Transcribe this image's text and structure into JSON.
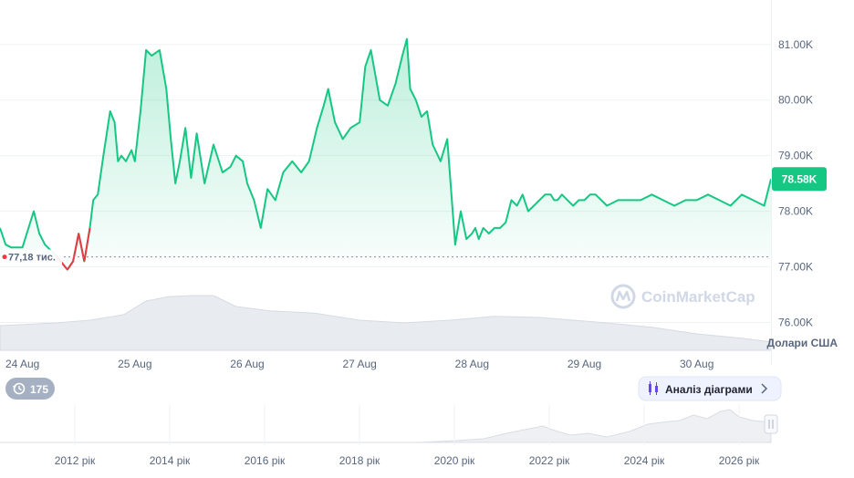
{
  "chart_data": {
    "type": "area",
    "currency_label": "Долари США",
    "price_badge": "78.58K",
    "baseline_label": "77,18 тис.",
    "baseline_value": 77.18,
    "y_ticks": [
      "81.00K",
      "80.00K",
      "79.00K",
      "78.00K",
      "77.00K",
      "76.00K"
    ],
    "y_tick_values": [
      81.0,
      80.0,
      79.0,
      78.0,
      77.0,
      76.0
    ],
    "ylim": [
      75.5,
      81.8
    ],
    "x_ticks": [
      "24 Aug",
      "25 Aug",
      "26 Aug",
      "27 Aug",
      "28 Aug",
      "29 Aug",
      "30 Aug"
    ],
    "xlim": [
      23.8,
      30.66
    ],
    "series": [
      {
        "x": [
          23.8,
          23.85,
          23.9,
          24.0,
          24.1,
          24.15,
          24.2,
          24.3,
          24.4,
          24.45,
          24.5,
          24.55,
          24.6,
          24.63,
          24.67,
          24.72,
          24.78,
          24.82,
          24.85,
          24.88,
          24.92,
          24.97,
          25.0,
          25.05,
          25.1,
          25.15,
          25.22,
          25.28,
          25.32,
          25.36,
          25.4,
          25.45,
          25.5,
          25.55,
          25.62,
          25.7,
          25.78,
          25.85,
          25.9,
          25.96,
          26.0,
          26.06,
          26.12,
          26.18,
          26.25,
          26.32,
          26.4,
          26.48,
          26.55,
          26.62,
          26.68,
          26.72,
          26.78,
          26.85,
          26.92,
          27.0,
          27.05,
          27.1,
          27.18,
          27.25,
          27.32,
          27.38,
          27.42,
          27.45,
          27.5,
          27.55,
          27.6,
          27.65,
          27.72,
          27.78,
          27.85,
          27.9,
          27.95,
          28.0,
          28.03,
          28.06,
          28.1,
          28.15,
          28.2,
          28.25,
          28.3,
          28.35,
          28.4,
          28.45,
          28.5,
          28.55,
          28.6,
          28.65,
          28.7,
          28.73,
          28.76,
          28.8,
          28.85,
          28.9,
          28.95,
          29.0,
          29.05,
          29.1,
          29.15,
          29.2,
          29.3,
          29.4,
          29.5,
          29.6,
          29.7,
          29.8,
          29.9,
          30.0,
          30.1,
          30.2,
          30.3,
          30.4,
          30.5,
          30.6,
          30.66
        ],
        "y": [
          77.7,
          77.4,
          77.35,
          77.35,
          78.0,
          77.6,
          77.4,
          77.2,
          76.95,
          77.1,
          77.6,
          77.1,
          77.7,
          78.2,
          78.3,
          79.0,
          79.8,
          79.6,
          78.9,
          79.0,
          78.9,
          79.1,
          78.9,
          79.8,
          80.9,
          80.8,
          80.9,
          80.2,
          79.3,
          78.5,
          78.9,
          79.5,
          78.6,
          79.4,
          78.5,
          79.2,
          78.7,
          78.8,
          79.0,
          78.9,
          78.5,
          78.2,
          77.7,
          78.4,
          78.2,
          78.7,
          78.9,
          78.7,
          78.9,
          79.5,
          79.9,
          80.2,
          79.6,
          79.3,
          79.5,
          79.6,
          80.6,
          80.9,
          80.0,
          79.9,
          80.3,
          80.8,
          81.1,
          80.2,
          80.0,
          79.7,
          79.8,
          79.2,
          78.9,
          79.3,
          77.4,
          78.0,
          77.5,
          77.6,
          77.7,
          77.5,
          77.7,
          77.6,
          77.7,
          77.7,
          77.8,
          78.2,
          78.1,
          78.3,
          78.0,
          78.1,
          78.2,
          78.3,
          78.3,
          78.2,
          78.2,
          78.3,
          78.2,
          78.1,
          78.2,
          78.2,
          78.3,
          78.3,
          78.2,
          78.1,
          78.2,
          78.2,
          78.2,
          78.3,
          78.2,
          78.1,
          78.2,
          78.2,
          78.3,
          78.2,
          78.1,
          78.3,
          78.2,
          78.1,
          78.58
        ]
      }
    ],
    "volume": {
      "x": [
        23.8,
        24.3,
        24.6,
        24.9,
        25.1,
        25.3,
        25.5,
        25.7,
        25.9,
        26.2,
        26.6,
        27.0,
        27.4,
        27.8,
        28.2,
        28.6,
        28.9,
        29.2,
        29.6,
        30.0,
        30.4,
        30.66
      ],
      "y": [
        0.45,
        0.5,
        0.55,
        0.65,
        0.9,
        0.98,
        1.0,
        1.0,
        0.8,
        0.72,
        0.68,
        0.55,
        0.5,
        0.55,
        0.62,
        0.6,
        0.55,
        0.5,
        0.42,
        0.3,
        0.22,
        0.15
      ]
    },
    "grid": true
  },
  "navigator": {
    "x_ticks": [
      "2012 рік",
      "2014 рік",
      "2016 рік",
      "2018 рік",
      "2020 рік",
      "2022 рік",
      "2024 рік",
      "2026 рік"
    ],
    "counter": "175",
    "analysis_button": "Аналіз діаграми"
  },
  "watermark": "CoinMarketCap",
  "colors": {
    "line": "#16c784",
    "fill_top": "#16c784",
    "negative": "#ea3943",
    "grid": "#eff2f5",
    "badge": "#16c784",
    "button_bg": "#eff2ff",
    "button_border": "#cfd6e4",
    "button_icon": "#6747ed"
  }
}
